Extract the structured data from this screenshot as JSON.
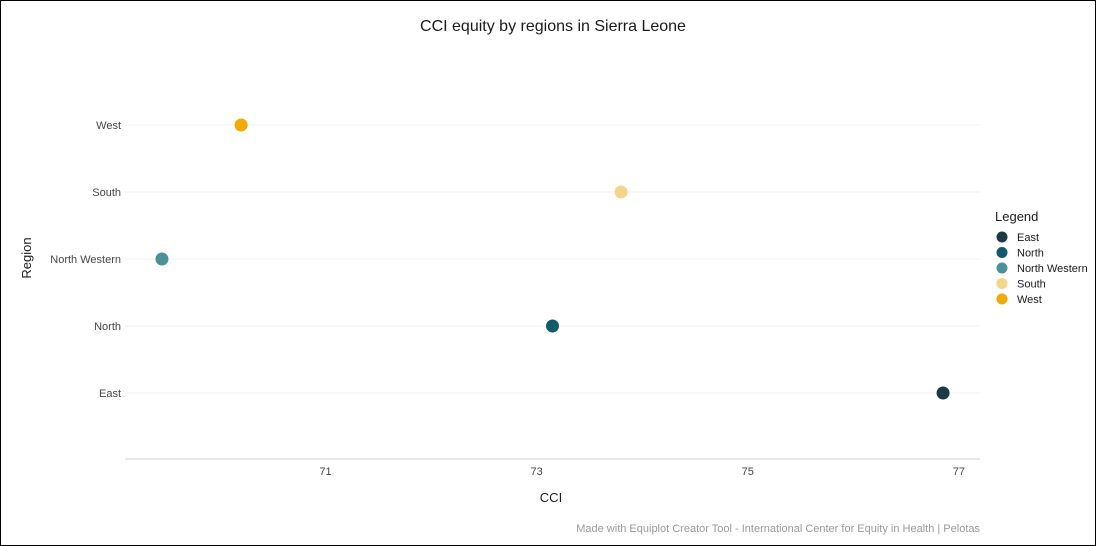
{
  "chart_data": {
    "type": "scatter",
    "title": "CCI equity by regions in Sierra Leone",
    "xlabel": "CCI",
    "ylabel": "Region",
    "xlim": [
      69.1,
      77.2
    ],
    "x_ticks": [
      "71",
      "73",
      "75",
      "77"
    ],
    "x_tick_values": [
      71,
      73,
      75,
      77
    ],
    "categories": [
      "East",
      "North",
      "North Western",
      "South",
      "West"
    ],
    "series": [
      {
        "name": "East",
        "x": 76.85,
        "y": "East",
        "color": "#1b3a45"
      },
      {
        "name": "North",
        "x": 73.15,
        "y": "North",
        "color": "#0f5a6b"
      },
      {
        "name": "North Western",
        "x": 69.45,
        "y": "North Western",
        "color": "#4a9199"
      },
      {
        "name": "South",
        "x": 73.8,
        "y": "South",
        "color": "#f5d58a"
      },
      {
        "name": "West",
        "x": 70.2,
        "y": "West",
        "color": "#f2a900"
      }
    ],
    "grid": "horizontal",
    "legend": {
      "title": "Legend",
      "placement": "right",
      "entries": [
        "East",
        "North",
        "North Western",
        "South",
        "West"
      ]
    }
  },
  "caption": "Made with Equiplot Creator Tool - International Center for Equity in Health | Pelotas"
}
